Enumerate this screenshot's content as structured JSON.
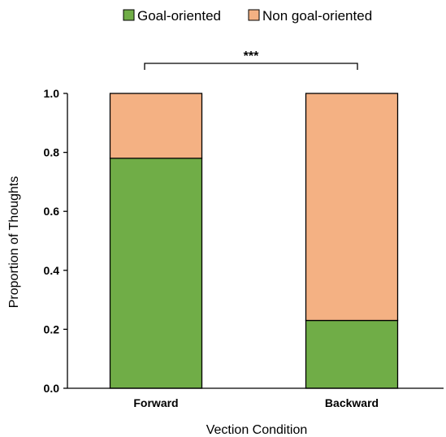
{
  "chart_data": {
    "type": "bar",
    "stacked": true,
    "categories": [
      "Forward",
      "Backward"
    ],
    "series": [
      {
        "name": "Goal-oriented",
        "values": [
          0.78,
          0.23
        ],
        "color": "#70ad47"
      },
      {
        "name": "Non goal-oriented",
        "values": [
          0.22,
          0.77
        ],
        "color": "#f4b183"
      }
    ],
    "xlabel": "Vection Condition",
    "ylabel": "Proportion of Thoughts",
    "ylim": [
      0,
      1.0
    ],
    "yticks": [
      "0.0",
      "0.2",
      "0.4",
      "0.6",
      "0.8",
      "1.0"
    ],
    "legend_position": "top-center",
    "grid": false,
    "annotation": {
      "text": "***",
      "between": [
        "Forward",
        "Backward"
      ]
    }
  }
}
